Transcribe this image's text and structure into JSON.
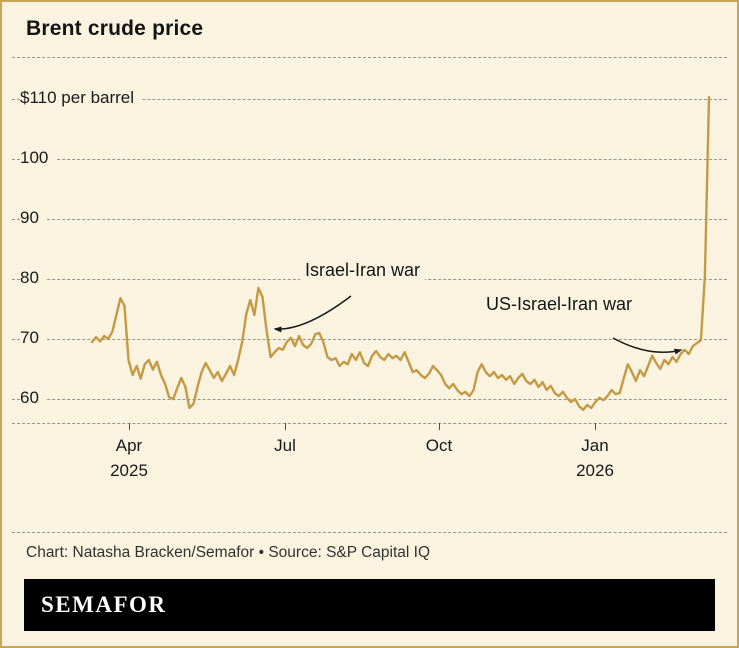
{
  "header": {
    "title": "Brent crude price"
  },
  "chart_data": {
    "type": "line",
    "title": "Brent crude price",
    "ylabel": "$ per barrel",
    "yticks": [
      60,
      70,
      80,
      90,
      100,
      110
    ],
    "ytick_labels": [
      "60",
      "70",
      "80",
      "90",
      "100",
      "$110 per barrel"
    ],
    "ylim": [
      56,
      113
    ],
    "grid": "dashed horizontal gridlines",
    "legend_position": "none",
    "x_ticks": [
      {
        "label": "Apr",
        "sublabel": "2025"
      },
      {
        "label": "Jul",
        "sublabel": ""
      },
      {
        "label": "Oct",
        "sublabel": ""
      },
      {
        "label": "Jan",
        "sublabel": "2026"
      }
    ],
    "series": [
      {
        "name": "Brent crude price ($ per barrel)",
        "color": "#c49a44",
        "values": [
          69.5,
          70.3,
          69.6,
          70.5,
          70.0,
          71.2,
          74.0,
          76.8,
          75.5,
          66.5,
          64.0,
          65.5,
          63.4,
          65.8,
          66.5,
          64.9,
          66.2,
          64.0,
          62.5,
          60.3,
          60.0,
          61.8,
          63.5,
          62.0,
          58.5,
          59.2,
          62.0,
          64.5,
          66.0,
          64.8,
          63.5,
          64.5,
          63.0,
          64.2,
          65.5,
          64.0,
          66.5,
          69.5,
          74.2,
          76.5,
          74.0,
          78.5,
          77.0,
          71.5,
          67.0,
          67.8,
          68.5,
          68.2,
          69.5,
          70.2,
          68.8,
          70.5,
          69.0,
          68.5,
          69.2,
          70.8,
          71.0,
          69.5,
          67.0,
          66.5,
          66.8,
          65.5,
          66.2,
          65.8,
          67.5,
          66.5,
          67.8,
          66.0,
          65.5,
          67.2,
          68.0,
          67.0,
          66.5,
          67.5,
          66.8,
          67.2,
          66.5,
          67.8,
          66.2,
          64.5,
          64.8,
          64.0,
          63.5,
          64.2,
          65.5,
          64.8,
          64.0,
          62.5,
          61.8,
          62.5,
          61.5,
          60.8,
          61.2,
          60.5,
          61.5,
          64.5,
          65.8,
          64.5,
          63.8,
          64.5,
          63.5,
          64.0,
          63.2,
          63.8,
          62.5,
          63.5,
          64.2,
          63.0,
          62.5,
          63.2,
          62.0,
          62.8,
          61.5,
          62.2,
          61.0,
          60.5,
          61.2,
          60.2,
          59.5,
          60.0,
          58.8,
          58.2,
          59.0,
          58.5,
          59.5,
          60.2,
          59.8,
          60.5,
          61.5,
          60.8,
          61.0,
          63.5,
          65.8,
          64.5,
          63.0,
          64.8,
          63.8,
          65.5,
          67.2,
          66.0,
          65.0,
          66.5,
          65.8,
          67.0,
          66.2,
          67.5,
          68.2,
          67.5,
          68.8,
          69.3,
          69.8,
          80.5,
          110.3
        ]
      }
    ],
    "annotations": [
      {
        "text": "Israel-Iran war"
      },
      {
        "text": "US-Israel-Iran war"
      }
    ]
  },
  "footer": {
    "credit": "Chart: Natasha Bracken/Semafor • Source: S&P Capital IQ",
    "brand": "SEMAFOR"
  },
  "colors": {
    "background": "#f9f3e0",
    "border": "#c9a558",
    "line": "#c49a44",
    "grid": "#98968a",
    "text": "#1a1a1a",
    "brand_bg": "#000000",
    "brand_text": "#ffffff"
  }
}
